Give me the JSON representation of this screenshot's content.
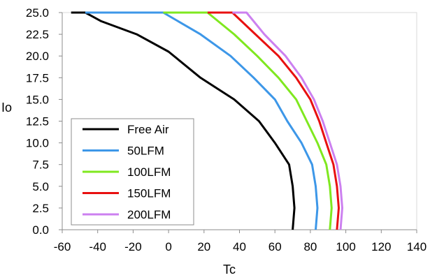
{
  "chart_data": {
    "type": "line",
    "title": "",
    "xlabel": "Tc",
    "ylabel": "Io",
    "xlim": [
      -60,
      140
    ],
    "ylim": [
      0,
      25
    ],
    "x_ticks": [
      -60,
      -40,
      -20,
      0,
      20,
      40,
      60,
      80,
      100,
      120,
      140
    ],
    "y_ticks": [
      "0.0",
      "2.5",
      "5.0",
      "7.5",
      "10.0",
      "12.5",
      "15.0",
      "17.5",
      "20.0",
      "22.5",
      "25.0"
    ],
    "grid": false,
    "legend": "bottom-left",
    "series": [
      {
        "name": "Free Air",
        "color": "#000000",
        "points": [
          [
            -55,
            25
          ],
          [
            -47,
            25
          ],
          [
            -38,
            24
          ],
          [
            -18,
            22.5
          ],
          [
            0,
            20.5
          ],
          [
            18,
            17.5
          ],
          [
            37,
            15
          ],
          [
            51,
            12.5
          ],
          [
            60,
            10
          ],
          [
            68,
            7.5
          ],
          [
            70,
            5
          ],
          [
            71,
            2.5
          ],
          [
            70,
            0
          ]
        ]
      },
      {
        "name": "50LFM",
        "color": "#3d97e8",
        "points": [
          [
            -47,
            25
          ],
          [
            -3,
            25
          ],
          [
            18,
            22.5
          ],
          [
            35,
            20
          ],
          [
            48,
            17.5
          ],
          [
            60,
            15
          ],
          [
            67,
            12.5
          ],
          [
            75,
            10
          ],
          [
            81,
            7.5
          ],
          [
            83,
            5
          ],
          [
            84,
            2.5
          ],
          [
            83,
            0
          ]
        ]
      },
      {
        "name": "100LFM",
        "color": "#7fe81f",
        "points": [
          [
            -3,
            25
          ],
          [
            22,
            25
          ],
          [
            37,
            22.5
          ],
          [
            50,
            20
          ],
          [
            62,
            17.5
          ],
          [
            72,
            15
          ],
          [
            78,
            12.5
          ],
          [
            84,
            10
          ],
          [
            89,
            7.5
          ],
          [
            91,
            5
          ],
          [
            92,
            2.5
          ],
          [
            91,
            0
          ]
        ]
      },
      {
        "name": "150LFM",
        "color": "#e81010",
        "points": [
          [
            22,
            25
          ],
          [
            36,
            25
          ],
          [
            49,
            22.5
          ],
          [
            62,
            20
          ],
          [
            72,
            17.5
          ],
          [
            80,
            15
          ],
          [
            85,
            12.5
          ],
          [
            89,
            10
          ],
          [
            93,
            7.5
          ],
          [
            95,
            5
          ],
          [
            96,
            2.5
          ],
          [
            95,
            0
          ]
        ]
      },
      {
        "name": "200LFM",
        "color": "#cc80f0",
        "points": [
          [
            36,
            25
          ],
          [
            44,
            25
          ],
          [
            54,
            22.5
          ],
          [
            66,
            20
          ],
          [
            75,
            17.5
          ],
          [
            82,
            15
          ],
          [
            87,
            12.5
          ],
          [
            91,
            10
          ],
          [
            95,
            7.5
          ],
          [
            97,
            5
          ],
          [
            98,
            2.5
          ],
          [
            97,
            0
          ]
        ]
      }
    ]
  }
}
